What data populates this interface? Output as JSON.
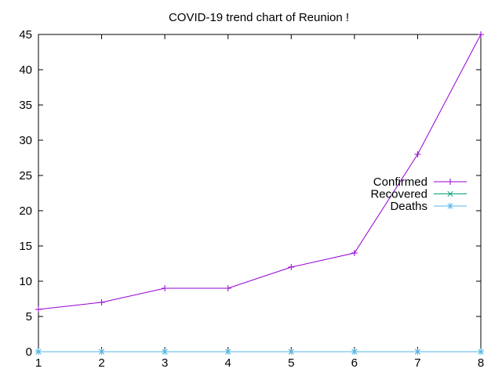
{
  "chart_data": {
    "type": "line",
    "title": "COVID-19 trend chart of Reunion !",
    "xlabel": "",
    "ylabel": "",
    "x": [
      1,
      2,
      3,
      4,
      5,
      6,
      7,
      8
    ],
    "xlim": [
      1,
      8
    ],
    "ylim": [
      0,
      45
    ],
    "xticks": [
      1,
      2,
      3,
      4,
      5,
      6,
      7,
      8
    ],
    "yticks": [
      0,
      5,
      10,
      15,
      20,
      25,
      30,
      35,
      40,
      45
    ],
    "grid": false,
    "legend_position": "right",
    "series": [
      {
        "name": "Confirmed",
        "values": [
          6,
          7,
          9,
          9,
          12,
          14,
          28,
          45
        ],
        "color": "#9400d3",
        "marker": "plus"
      },
      {
        "name": "Recovered",
        "values": [
          0,
          0,
          0,
          0,
          0,
          0,
          0,
          0
        ],
        "color": "#009e73",
        "marker": "cross"
      },
      {
        "name": "Deaths",
        "values": [
          0,
          0,
          0,
          0,
          0,
          0,
          0,
          0
        ],
        "color": "#56b4e9",
        "marker": "star"
      }
    ]
  }
}
